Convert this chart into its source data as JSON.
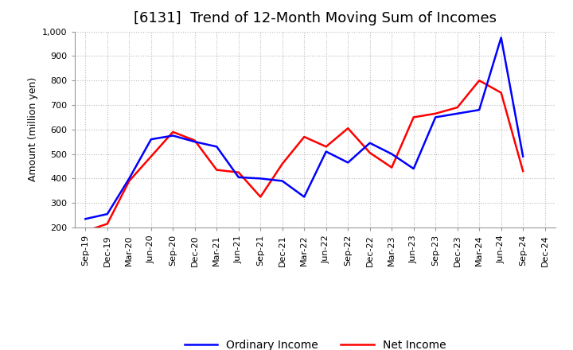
{
  "title": "[6131]  Trend of 12-Month Moving Sum of Incomes",
  "ylabel": "Amount (million yen)",
  "ylim": [
    200,
    1000
  ],
  "yticks": [
    200,
    300,
    400,
    500,
    600,
    700,
    800,
    900,
    1000
  ],
  "ytick_labels": [
    "200",
    "300",
    "400",
    "500",
    "600",
    "700",
    "800",
    "900",
    "1,000"
  ],
  "x_labels": [
    "Sep-19",
    "Dec-19",
    "Mar-20",
    "Jun-20",
    "Sep-20",
    "Dec-20",
    "Mar-21",
    "Jun-21",
    "Sep-21",
    "Dec-21",
    "Mar-22",
    "Jun-22",
    "Sep-22",
    "Dec-22",
    "Mar-23",
    "Jun-23",
    "Sep-23",
    "Dec-23",
    "Mar-24",
    "Jun-24",
    "Sep-24",
    "Dec-24"
  ],
  "ordinary_income": [
    235,
    255,
    400,
    560,
    575,
    550,
    530,
    405,
    400,
    390,
    325,
    510,
    465,
    545,
    500,
    440,
    650,
    665,
    680,
    975,
    490,
    null
  ],
  "net_income": [
    185,
    215,
    390,
    490,
    590,
    555,
    435,
    425,
    325,
    460,
    570,
    530,
    605,
    505,
    445,
    650,
    665,
    690,
    800,
    750,
    430,
    null
  ],
  "ordinary_color": "#0000ff",
  "net_color": "#ff0000",
  "bg_color": "#ffffff",
  "grid_color": "#bbbbbb",
  "title_fontsize": 13,
  "axis_fontsize": 9,
  "tick_fontsize": 8,
  "legend_fontsize": 10,
  "line_width": 1.8
}
